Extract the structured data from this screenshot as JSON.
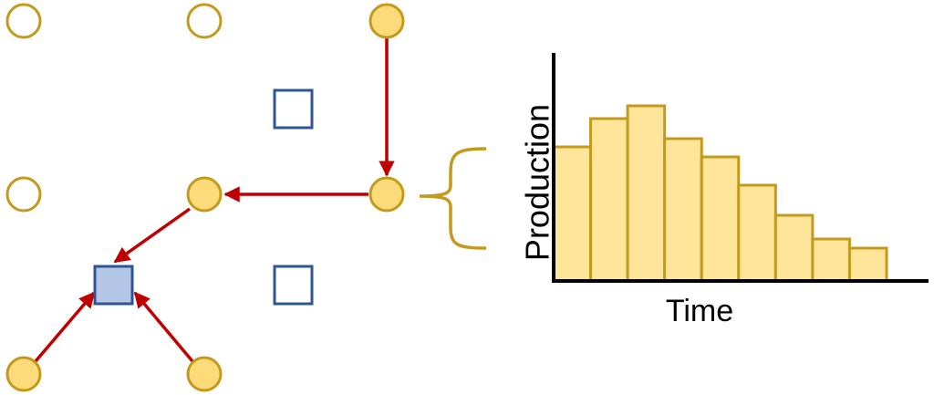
{
  "chart_data": {
    "type": "bar",
    "x_label": "Time",
    "y_label": "Production",
    "values": [
      147,
      178,
      192,
      156,
      136,
      105,
      72,
      46,
      36
    ],
    "color": "#fee599",
    "edge_color": "#c49a1c",
    "ylim": [
      0,
      250
    ]
  }
}
